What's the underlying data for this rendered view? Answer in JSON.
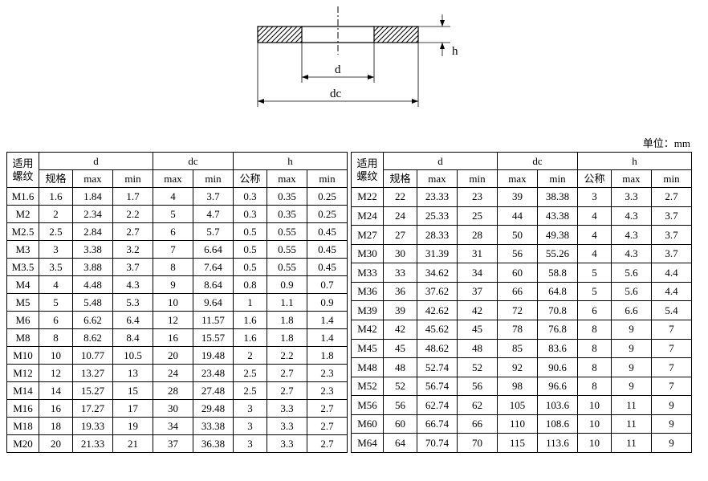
{
  "unit_label": "单位：mm",
  "diagram": {
    "d_label": "d",
    "dc_label": "dc",
    "h_label": "h"
  },
  "headers": {
    "thread": "适用螺纹",
    "d": "d",
    "dc": "dc",
    "h": "h",
    "spec": "规格",
    "max": "max",
    "min": "min",
    "nominal": "公称"
  },
  "left_rows": [
    {
      "thread": "M1.6",
      "spec": "1.6",
      "dmax": "1.84",
      "dmin": "1.7",
      "dcmax": "4",
      "dcmin": "3.7",
      "hnom": "0.3",
      "hmax": "0.35",
      "hmin": "0.25"
    },
    {
      "thread": "M2",
      "spec": "2",
      "dmax": "2.34",
      "dmin": "2.2",
      "dcmax": "5",
      "dcmin": "4.7",
      "hnom": "0.3",
      "hmax": "0.35",
      "hmin": "0.25"
    },
    {
      "thread": "M2.5",
      "spec": "2.5",
      "dmax": "2.84",
      "dmin": "2.7",
      "dcmax": "6",
      "dcmin": "5.7",
      "hnom": "0.5",
      "hmax": "0.55",
      "hmin": "0.45"
    },
    {
      "thread": "M3",
      "spec": "3",
      "dmax": "3.38",
      "dmin": "3.2",
      "dcmax": "7",
      "dcmin": "6.64",
      "hnom": "0.5",
      "hmax": "0.55",
      "hmin": "0.45"
    },
    {
      "thread": "M3.5",
      "spec": "3.5",
      "dmax": "3.88",
      "dmin": "3.7",
      "dcmax": "8",
      "dcmin": "7.64",
      "hnom": "0.5",
      "hmax": "0.55",
      "hmin": "0.45"
    },
    {
      "thread": "M4",
      "spec": "4",
      "dmax": "4.48",
      "dmin": "4.3",
      "dcmax": "9",
      "dcmin": "8.64",
      "hnom": "0.8",
      "hmax": "0.9",
      "hmin": "0.7"
    },
    {
      "thread": "M5",
      "spec": "5",
      "dmax": "5.48",
      "dmin": "5.3",
      "dcmax": "10",
      "dcmin": "9.64",
      "hnom": "1",
      "hmax": "1.1",
      "hmin": "0.9"
    },
    {
      "thread": "M6",
      "spec": "6",
      "dmax": "6.62",
      "dmin": "6.4",
      "dcmax": "12",
      "dcmin": "11.57",
      "hnom": "1.6",
      "hmax": "1.8",
      "hmin": "1.4"
    },
    {
      "thread": "M8",
      "spec": "8",
      "dmax": "8.62",
      "dmin": "8.4",
      "dcmax": "16",
      "dcmin": "15.57",
      "hnom": "1.6",
      "hmax": "1.8",
      "hmin": "1.4"
    },
    {
      "thread": "M10",
      "spec": "10",
      "dmax": "10.77",
      "dmin": "10.5",
      "dcmax": "20",
      "dcmin": "19.48",
      "hnom": "2",
      "hmax": "2.2",
      "hmin": "1.8"
    },
    {
      "thread": "M12",
      "spec": "12",
      "dmax": "13.27",
      "dmin": "13",
      "dcmax": "24",
      "dcmin": "23.48",
      "hnom": "2.5",
      "hmax": "2.7",
      "hmin": "2.3"
    },
    {
      "thread": "M14",
      "spec": "14",
      "dmax": "15.27",
      "dmin": "15",
      "dcmax": "28",
      "dcmin": "27.48",
      "hnom": "2.5",
      "hmax": "2.7",
      "hmin": "2.3"
    },
    {
      "thread": "M16",
      "spec": "16",
      "dmax": "17.27",
      "dmin": "17",
      "dcmax": "30",
      "dcmin": "29.48",
      "hnom": "3",
      "hmax": "3.3",
      "hmin": "2.7"
    },
    {
      "thread": "M18",
      "spec": "18",
      "dmax": "19.33",
      "dmin": "19",
      "dcmax": "34",
      "dcmin": "33.38",
      "hnom": "3",
      "hmax": "3.3",
      "hmin": "2.7"
    },
    {
      "thread": "M20",
      "spec": "20",
      "dmax": "21.33",
      "dmin": "21",
      "dcmax": "37",
      "dcmin": "36.38",
      "hnom": "3",
      "hmax": "3.3",
      "hmin": "2.7"
    }
  ],
  "right_rows": [
    {
      "thread": "M22",
      "spec": "22",
      "dmax": "23.33",
      "dmin": "23",
      "dcmax": "39",
      "dcmin": "38.38",
      "hnom": "3",
      "hmax": "3.3",
      "hmin": "2.7"
    },
    {
      "thread": "M24",
      "spec": "24",
      "dmax": "25.33",
      "dmin": "25",
      "dcmax": "44",
      "dcmin": "43.38",
      "hnom": "4",
      "hmax": "4.3",
      "hmin": "3.7"
    },
    {
      "thread": "M27",
      "spec": "27",
      "dmax": "28.33",
      "dmin": "28",
      "dcmax": "50",
      "dcmin": "49.38",
      "hnom": "4",
      "hmax": "4.3",
      "hmin": "3.7"
    },
    {
      "thread": "M30",
      "spec": "30",
      "dmax": "31.39",
      "dmin": "31",
      "dcmax": "56",
      "dcmin": "55.26",
      "hnom": "4",
      "hmax": "4.3",
      "hmin": "3.7"
    },
    {
      "thread": "M33",
      "spec": "33",
      "dmax": "34.62",
      "dmin": "34",
      "dcmax": "60",
      "dcmin": "58.8",
      "hnom": "5",
      "hmax": "5.6",
      "hmin": "4.4"
    },
    {
      "thread": "M36",
      "spec": "36",
      "dmax": "37.62",
      "dmin": "37",
      "dcmax": "66",
      "dcmin": "64.8",
      "hnom": "5",
      "hmax": "5.6",
      "hmin": "4.4"
    },
    {
      "thread": "M39",
      "spec": "39",
      "dmax": "42.62",
      "dmin": "42",
      "dcmax": "72",
      "dcmin": "70.8",
      "hnom": "6",
      "hmax": "6.6",
      "hmin": "5.4"
    },
    {
      "thread": "M42",
      "spec": "42",
      "dmax": "45.62",
      "dmin": "45",
      "dcmax": "78",
      "dcmin": "76.8",
      "hnom": "8",
      "hmax": "9",
      "hmin": "7"
    },
    {
      "thread": "M45",
      "spec": "45",
      "dmax": "48.62",
      "dmin": "48",
      "dcmax": "85",
      "dcmin": "83.6",
      "hnom": "8",
      "hmax": "9",
      "hmin": "7"
    },
    {
      "thread": "M48",
      "spec": "48",
      "dmax": "52.74",
      "dmin": "52",
      "dcmax": "92",
      "dcmin": "90.6",
      "hnom": "8",
      "hmax": "9",
      "hmin": "7"
    },
    {
      "thread": "M52",
      "spec": "52",
      "dmax": "56.74",
      "dmin": "56",
      "dcmax": "98",
      "dcmin": "96.6",
      "hnom": "8",
      "hmax": "9",
      "hmin": "7"
    },
    {
      "thread": "M56",
      "spec": "56",
      "dmax": "62.74",
      "dmin": "62",
      "dcmax": "105",
      "dcmin": "103.6",
      "hnom": "10",
      "hmax": "11",
      "hmin": "9"
    },
    {
      "thread": "M60",
      "spec": "60",
      "dmax": "66.74",
      "dmin": "66",
      "dcmax": "110",
      "dcmin": "108.6",
      "hnom": "10",
      "hmax": "11",
      "hmin": "9"
    },
    {
      "thread": "M64",
      "spec": "64",
      "dmax": "70.74",
      "dmin": "70",
      "dcmax": "115",
      "dcmin": "113.6",
      "hnom": "10",
      "hmax": "11",
      "hmin": "9"
    }
  ]
}
